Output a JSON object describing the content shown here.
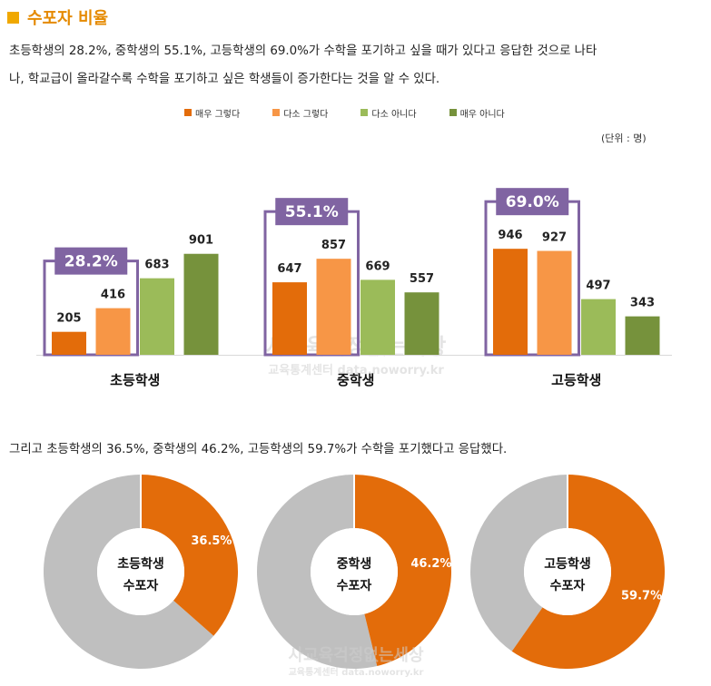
{
  "title": "수포자 비율",
  "paragraph1_line1": "초등학생의 28.2%, 중학생의 55.1%, 고등학생의 69.0%가 수학을 포기하고 싶을 때가 있다고 응답한 것으로 나타",
  "paragraph1_line2": "나, 학교급이 올라갈수록 수학을 포기하고 싶은 학생들이 증가한다는 것을 알 수 있다.",
  "unit_label": "(단위 : 명)",
  "paragraph2": "그리고 초등학생의 36.5%, 중학생의 46.2%, 고등학생의 59.7%가 수학을 포기했다고 응답했다.",
  "watermark": {
    "line1": "사교육걱정없는세상",
    "line2": "교육통계센터 data.noworry.kr"
  },
  "colors": {
    "title": "#e58a00",
    "title_square": "#f0a800",
    "s1": "#e36c0a",
    "s2": "#f79646",
    "s3": "#9bbb59",
    "s4": "#76923c",
    "callout": "#8064a2",
    "donut_gray": "#bfbfbf",
    "donut_orange": "#e36c0a"
  },
  "chart_data": [
    {
      "type": "bar",
      "categories": [
        "초등학생",
        "중학생",
        "고등학생"
      ],
      "series": [
        {
          "name": "매우 그렇다",
          "values": [
            205,
            647,
            946
          ]
        },
        {
          "name": "다소 그렇다",
          "values": [
            416,
            857,
            927
          ]
        },
        {
          "name": "다소 아니다",
          "values": [
            683,
            669,
            497
          ]
        },
        {
          "name": "매우 아니다",
          "values": [
            901,
            557,
            343
          ]
        }
      ],
      "callouts": [
        "28.2%",
        "55.1%",
        "69.0%"
      ],
      "legend": "top",
      "ylim": [
        0,
        1150
      ],
      "grid": false
    },
    {
      "type": "pie",
      "donuts": [
        {
          "center_line1": "초등학생",
          "center_line2": "수포자",
          "value": 36.5,
          "label": "36.5%"
        },
        {
          "center_line1": "중학생",
          "center_line2": "수포자",
          "value": 46.2,
          "label": "46.2%"
        },
        {
          "center_line1": "고등학생",
          "center_line2": "수포자",
          "value": 59.7,
          "label": "59.7%"
        }
      ]
    }
  ]
}
